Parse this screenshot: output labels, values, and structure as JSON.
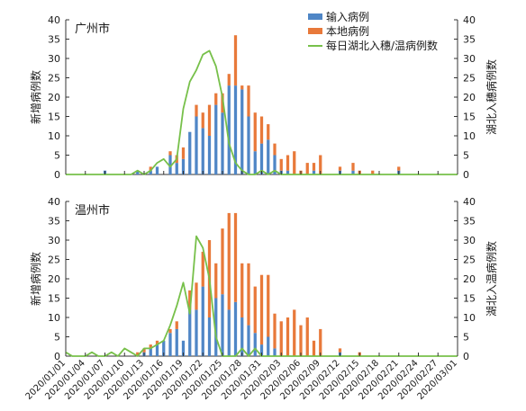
{
  "colors": {
    "imported": "#4f86c6",
    "local": "#e8793a",
    "hubei": "#77c04a",
    "axis": "#333333"
  },
  "legend": {
    "imported": "输入病例",
    "local": "本地病例",
    "hubei": "每日湖北入穗/温病例数"
  },
  "chart_data": [
    {
      "type": "bar",
      "title": "广州市",
      "ylabel": "新增病例数",
      "y2label": "湖北入穗病例数",
      "ylim": [
        0,
        40
      ],
      "y2lim": [
        0,
        40
      ],
      "yticks": [
        0,
        5,
        10,
        15,
        20,
        25,
        30,
        35,
        40
      ],
      "legend_position": "top-right",
      "categories": [
        "2020/01/01",
        "2020/01/02",
        "2020/01/03",
        "2020/01/04",
        "2020/01/05",
        "2020/01/06",
        "2020/01/07",
        "2020/01/08",
        "2020/01/09",
        "2020/01/10",
        "2020/01/11",
        "2020/01/12",
        "2020/01/13",
        "2020/01/14",
        "2020/01/15",
        "2020/01/16",
        "2020/01/17",
        "2020/01/18",
        "2020/01/19",
        "2020/01/20",
        "2020/01/21",
        "2020/01/22",
        "2020/01/23",
        "2020/01/24",
        "2020/01/25",
        "2020/01/26",
        "2020/01/27",
        "2020/01/28",
        "2020/01/29",
        "2020/01/30",
        "2020/01/31",
        "2020/02/01",
        "2020/02/02",
        "2020/02/03",
        "2020/02/04",
        "2020/02/05",
        "2020/02/06",
        "2020/02/07",
        "2020/02/08",
        "2020/02/09",
        "2020/02/10",
        "2020/02/11",
        "2020/02/12",
        "2020/02/13",
        "2020/02/14",
        "2020/02/15",
        "2020/02/16",
        "2020/02/17",
        "2020/02/18",
        "2020/02/19",
        "2020/02/20",
        "2020/02/21",
        "2020/02/22",
        "2020/02/23",
        "2020/02/24",
        "2020/02/25",
        "2020/02/26",
        "2020/02/27",
        "2020/02/28",
        "2020/02/29",
        "2020/03/01"
      ],
      "series": [
        {
          "name": "输入病例",
          "kind": "bar-stack",
          "values": [
            0,
            0,
            0,
            0,
            0,
            0,
            1,
            0,
            0,
            0,
            0,
            1,
            0,
            1,
            2,
            0,
            5,
            3,
            4,
            11,
            15,
            12,
            10,
            18,
            16,
            23,
            23,
            22,
            15,
            6,
            8,
            9,
            5,
            1,
            1,
            0,
            0,
            0,
            1,
            0,
            0,
            0,
            1,
            0,
            1,
            0,
            0,
            0,
            0,
            0,
            0,
            1,
            0,
            0,
            0,
            0,
            0,
            0,
            0,
            0,
            0
          ]
        },
        {
          "name": "本地病例",
          "kind": "bar-stack",
          "values": [
            0,
            0,
            0,
            0,
            0,
            0,
            0,
            0,
            0,
            0,
            0,
            0,
            0,
            1,
            0,
            0,
            1,
            2,
            3,
            0,
            3,
            4,
            8,
            3,
            5,
            3,
            13,
            1,
            8,
            10,
            7,
            4,
            3,
            3,
            4,
            6,
            1,
            3,
            2,
            5,
            0,
            0,
            1,
            0,
            2,
            1,
            0,
            1,
            0,
            0,
            0,
            1,
            0,
            0,
            0,
            0,
            0,
            0,
            0,
            0,
            0
          ]
        },
        {
          "name": "每日湖北入穗/温病例数",
          "kind": "line",
          "axis": "right",
          "values": [
            0,
            0,
            0,
            0,
            0,
            0,
            0,
            0,
            0,
            0,
            0,
            1,
            0,
            1,
            3,
            4,
            2,
            4,
            17,
            24,
            27,
            31,
            32,
            28,
            20,
            8,
            3,
            1,
            0,
            0,
            1,
            0,
            1,
            0,
            0,
            0,
            0,
            0,
            0,
            0,
            0,
            0,
            0,
            0,
            0,
            0,
            0,
            0,
            0,
            0,
            0,
            0,
            0,
            0,
            0,
            0,
            0,
            0,
            0,
            0,
            0
          ]
        }
      ]
    },
    {
      "type": "bar",
      "title": "温州市",
      "ylabel": "新增病例数",
      "y2label": "湖北入温病例数",
      "ylim": [
        0,
        40
      ],
      "y2lim": [
        0,
        40
      ],
      "yticks": [
        0,
        5,
        10,
        15,
        20,
        25,
        30,
        35,
        40
      ],
      "categories": [
        "2020/01/01",
        "2020/01/02",
        "2020/01/03",
        "2020/01/04",
        "2020/01/05",
        "2020/01/06",
        "2020/01/07",
        "2020/01/08",
        "2020/01/09",
        "2020/01/10",
        "2020/01/11",
        "2020/01/12",
        "2020/01/13",
        "2020/01/14",
        "2020/01/15",
        "2020/01/16",
        "2020/01/17",
        "2020/01/18",
        "2020/01/19",
        "2020/01/20",
        "2020/01/21",
        "2020/01/22",
        "2020/01/23",
        "2020/01/24",
        "2020/01/25",
        "2020/01/26",
        "2020/01/27",
        "2020/01/28",
        "2020/01/29",
        "2020/01/30",
        "2020/01/31",
        "2020/02/01",
        "2020/02/02",
        "2020/02/03",
        "2020/02/04",
        "2020/02/05",
        "2020/02/06",
        "2020/02/07",
        "2020/02/08",
        "2020/02/09",
        "2020/02/10",
        "2020/02/11",
        "2020/02/12",
        "2020/02/13",
        "2020/02/14",
        "2020/02/15",
        "2020/02/16",
        "2020/02/17",
        "2020/02/18",
        "2020/02/19",
        "2020/02/20",
        "2020/02/21",
        "2020/02/22",
        "2020/02/23",
        "2020/02/24",
        "2020/02/25",
        "2020/02/26",
        "2020/02/27",
        "2020/02/28",
        "2020/02/29",
        "2020/03/01"
      ],
      "series": [
        {
          "name": "输入病例",
          "kind": "bar-stack",
          "values": [
            0,
            0,
            0,
            0,
            0,
            0,
            0,
            0,
            0,
            0,
            0,
            0,
            1,
            2,
            3,
            4,
            6,
            7,
            4,
            12,
            12,
            18,
            10,
            15,
            16,
            12,
            14,
            10,
            8,
            6,
            3,
            5,
            2,
            0,
            0,
            0,
            0,
            0,
            0,
            0,
            0,
            0,
            1,
            0,
            0,
            0,
            0,
            0,
            0,
            0,
            0,
            0,
            0,
            0,
            0,
            0,
            0,
            0,
            0,
            0,
            0
          ]
        },
        {
          "name": "本地病例",
          "kind": "bar-stack",
          "values": [
            0,
            0,
            0,
            0,
            0,
            0,
            0,
            0,
            0,
            0,
            0,
            1,
            1,
            1,
            1,
            0,
            1,
            2,
            0,
            5,
            7,
            9,
            20,
            9,
            17,
            25,
            23,
            14,
            16,
            12,
            18,
            16,
            9,
            9,
            10,
            12,
            8,
            10,
            4,
            7,
            0,
            0,
            1,
            0,
            0,
            1,
            0,
            0,
            0,
            0,
            0,
            0,
            0,
            0,
            0,
            0,
            0,
            0,
            0,
            0,
            0
          ]
        },
        {
          "name": "每日湖北入穗/温病例数",
          "kind": "line",
          "axis": "right",
          "values": [
            1,
            0,
            0,
            0,
            1,
            0,
            0,
            1,
            0,
            2,
            1,
            0,
            2,
            2,
            3,
            4,
            8,
            13,
            19,
            11,
            31,
            28,
            20,
            5,
            0,
            0,
            0,
            2,
            0,
            2,
            0,
            0,
            0,
            0,
            0,
            0,
            0,
            0,
            0,
            0,
            0,
            0,
            0,
            0,
            0,
            0,
            0,
            0,
            0,
            0,
            0,
            0,
            0,
            0,
            0,
            0,
            0,
            0,
            0,
            0,
            0
          ]
        }
      ]
    }
  ],
  "xticks": [
    "2020/01/01",
    "2020/01/04",
    "2020/01/07",
    "2020/01/10",
    "2020/01/13",
    "2020/01/16",
    "2020/01/19",
    "2020/01/22",
    "2020/01/25",
    "2020/01/28",
    "2020/01/31",
    "2020/02/03",
    "2020/02/06",
    "2020/02/09",
    "2020/02/12",
    "2020/02/15",
    "2020/02/18",
    "2020/02/21",
    "2020/02/24",
    "2020/02/27",
    "2020/03/01"
  ]
}
